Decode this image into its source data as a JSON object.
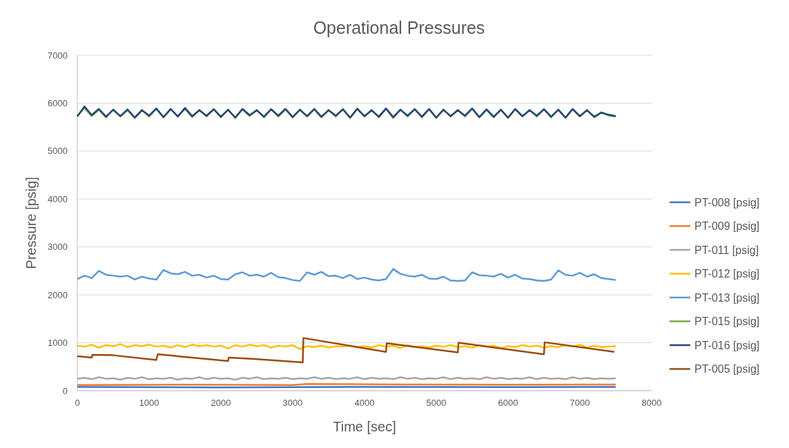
{
  "chart_data": {
    "type": "line",
    "title": "Operational Pressures",
    "xlabel": "Time [sec]",
    "ylabel": "Pressure [psig]",
    "xlim": [
      0,
      8000
    ],
    "xticks": [
      0,
      1000,
      2000,
      3000,
      4000,
      5000,
      6000,
      7000,
      8000
    ],
    "ylim": [
      0,
      7000
    ],
    "yticks": [
      0,
      1000,
      2000,
      3000,
      4000,
      5000,
      6000,
      7000
    ],
    "grid": "y",
    "legend": "right",
    "line_style": "solid",
    "x": [
      0,
      100,
      200,
      300,
      400,
      500,
      600,
      700,
      800,
      900,
      1000,
      1100,
      1200,
      1300,
      1400,
      1500,
      1600,
      1700,
      1800,
      1900,
      2000,
      2100,
      2200,
      2300,
      2400,
      2500,
      2600,
      2700,
      2800,
      2900,
      3000,
      3100,
      3200,
      3300,
      3400,
      3500,
      3600,
      3700,
      3800,
      3900,
      4000,
      4100,
      4200,
      4300,
      4400,
      4500,
      4600,
      4700,
      4800,
      4900,
      5000,
      5100,
      5200,
      5300,
      5400,
      5500,
      5600,
      5700,
      5800,
      5900,
      6000,
      6100,
      6200,
      6300,
      6400,
      6500,
      6600,
      6700,
      6800,
      6900,
      7000,
      7100,
      7200,
      7300,
      7400,
      7500
    ],
    "series": [
      {
        "name": "PT-008 [psig]",
        "color": "#4472c4",
        "x": [
          0,
          2000,
          4000,
          6000,
          7500
        ],
        "values": [
          80,
          70,
          80,
          75,
          80
        ]
      },
      {
        "name": "PT-009 [psig]",
        "color": "#ed7d31",
        "x": [
          0,
          1500,
          3000,
          3200,
          4500,
          6000,
          7500
        ],
        "values": [
          120,
          125,
          120,
          140,
          130,
          125,
          130
        ]
      },
      {
        "name": "PT-011 [psig]",
        "color": "#a5a5a5",
        "values": [
          250,
          270,
          240,
          280,
          250,
          260,
          230,
          270,
          250,
          280,
          240,
          260,
          250,
          270,
          230,
          260,
          250,
          280,
          240,
          270,
          250,
          260,
          230,
          270,
          250,
          280,
          240,
          260,
          250,
          270,
          240,
          260,
          250,
          280,
          250,
          270,
          240,
          260,
          250,
          280,
          240,
          270,
          250,
          260,
          240,
          280,
          250,
          270,
          240,
          260,
          250,
          280,
          240,
          270,
          250,
          260,
          240,
          280,
          250,
          270,
          240,
          260,
          250,
          280,
          240,
          270,
          250,
          260,
          240,
          280,
          250,
          270,
          240,
          260,
          250,
          260
        ]
      },
      {
        "name": "PT-012 [psig]",
        "color": "#ffc000",
        "values": [
          940,
          920,
          960,
          900,
          950,
          930,
          970,
          910,
          950,
          930,
          960,
          920,
          940,
          900,
          950,
          910,
          960,
          930,
          950,
          920,
          940,
          880,
          950,
          920,
          960,
          930,
          950,
          900,
          940,
          920,
          950,
          870,
          930,
          910,
          940,
          900,
          930,
          920,
          940,
          910,
          930,
          900,
          950,
          920,
          940,
          890,
          950,
          910,
          930,
          900,
          940,
          920,
          950,
          910,
          930,
          900,
          950,
          920,
          940,
          890,
          930,
          910,
          950,
          920,
          940,
          900,
          930,
          910,
          950,
          920,
          960,
          900,
          940,
          910,
          920,
          930
        ]
      },
      {
        "name": "PT-013 [psig]",
        "color": "#5b9bd5",
        "values": [
          2330,
          2400,
          2350,
          2500,
          2420,
          2400,
          2380,
          2400,
          2320,
          2380,
          2340,
          2320,
          2520,
          2450,
          2430,
          2480,
          2400,
          2420,
          2360,
          2400,
          2330,
          2320,
          2430,
          2470,
          2400,
          2420,
          2380,
          2460,
          2370,
          2350,
          2310,
          2290,
          2470,
          2420,
          2480,
          2390,
          2400,
          2350,
          2420,
          2330,
          2360,
          2320,
          2300,
          2330,
          2540,
          2440,
          2400,
          2380,
          2420,
          2340,
          2330,
          2380,
          2300,
          2290,
          2300,
          2470,
          2410,
          2400,
          2380,
          2440,
          2360,
          2420,
          2340,
          2330,
          2300,
          2290,
          2320,
          2510,
          2420,
          2400,
          2460,
          2380,
          2430,
          2350,
          2330,
          2310
        ]
      },
      {
        "name": "PT-015 [psig]",
        "color": "#70ad47",
        "values": [
          5740,
          5900,
          5730,
          5860,
          5700,
          5870,
          5720,
          5850,
          5690,
          5860,
          5720,
          5880,
          5700,
          5870,
          5730,
          5880,
          5710,
          5860,
          5720,
          5880,
          5700,
          5870,
          5690,
          5870,
          5730,
          5860,
          5700,
          5880,
          5720,
          5870,
          5700,
          5870,
          5720,
          5870,
          5700,
          5860,
          5720,
          5880,
          5690,
          5890,
          5720,
          5860,
          5700,
          5880,
          5690,
          5870,
          5720,
          5880,
          5700,
          5870,
          5690,
          5870,
          5720,
          5860,
          5720,
          5880,
          5700,
          5860,
          5700,
          5870,
          5690,
          5870,
          5720,
          5860,
          5720,
          5880,
          5700,
          5870,
          5690,
          5870,
          5720,
          5860,
          5700,
          5810,
          5740,
          5720
        ]
      },
      {
        "name": "PT-016 [psig]",
        "color": "#264478",
        "values": [
          5720,
          5930,
          5750,
          5880,
          5720,
          5860,
          5730,
          5870,
          5700,
          5850,
          5740,
          5890,
          5710,
          5880,
          5720,
          5900,
          5730,
          5850,
          5740,
          5870,
          5720,
          5860,
          5700,
          5880,
          5750,
          5850,
          5720,
          5870,
          5740,
          5880,
          5710,
          5860,
          5730,
          5880,
          5720,
          5850,
          5740,
          5870,
          5700,
          5880,
          5730,
          5850,
          5720,
          5890,
          5710,
          5860,
          5740,
          5870,
          5720,
          5880,
          5700,
          5860,
          5730,
          5850,
          5740,
          5890,
          5710,
          5870,
          5720,
          5860,
          5700,
          5880,
          5730,
          5850,
          5740,
          5870,
          5720,
          5860,
          5700,
          5880,
          5730,
          5850,
          5720,
          5800,
          5760,
          5730
        ]
      },
      {
        "name": "PT-005 [psig]",
        "color": "#9e480e",
        "x": [
          0,
          200,
          210,
          500,
          1100,
          1120,
          2100,
          2110,
          2500,
          3140,
          3150,
          4300,
          4310,
          5300,
          5310,
          6500,
          6510,
          7480
        ],
        "values": [
          720,
          690,
          750,
          740,
          640,
          760,
          620,
          690,
          660,
          590,
          1100,
          810,
          990,
          800,
          1000,
          760,
          1010,
          810
        ]
      }
    ]
  }
}
